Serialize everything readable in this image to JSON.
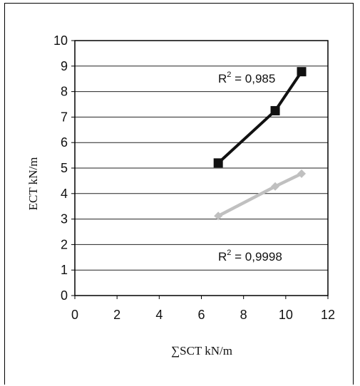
{
  "chart_data": {
    "type": "scatter",
    "xlabel": "∑SCT kN/m",
    "ylabel": "ECT kN/m",
    "xlim": [
      0,
      12
    ],
    "ylim": [
      0,
      10
    ],
    "x_ticks": [
      "0",
      "2",
      "4",
      "6",
      "8",
      "10",
      "12"
    ],
    "y_ticks": [
      "0",
      "1",
      "2",
      "3",
      "4",
      "5",
      "6",
      "7",
      "8",
      "9",
      "10"
    ],
    "grid": "horizontal",
    "series": [
      {
        "marker": "square",
        "color": "#111111",
        "x": [
          6.8,
          9.5,
          10.75
        ],
        "y": [
          5.2,
          7.25,
          8.78
        ],
        "trendline": true,
        "annotation": "R² = 0,985"
      },
      {
        "marker": "diamond",
        "color": "#c0c0c0",
        "x": [
          6.8,
          9.5,
          10.75
        ],
        "y": [
          3.12,
          4.28,
          4.78
        ],
        "trendline": true,
        "annotation": "R² = 0,9998"
      }
    ],
    "annotations": [
      {
        "text_main": "R",
        "sup": "2",
        "text_rest": " = 0,985"
      },
      {
        "text_main": "R",
        "sup": "2",
        "text_rest": " = 0,9998"
      }
    ]
  }
}
